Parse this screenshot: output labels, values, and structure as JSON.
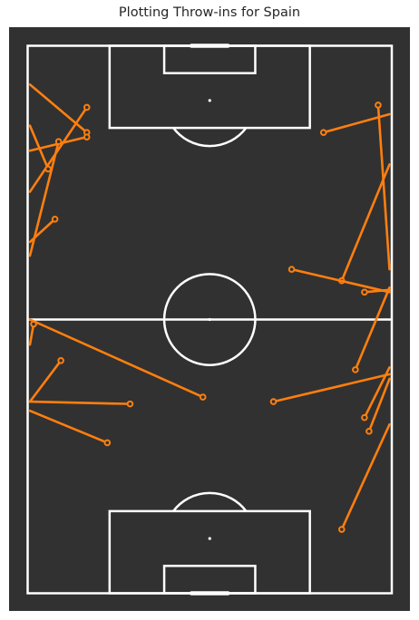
{
  "chart_data": {
    "type": "scatter",
    "title": "Plotting Throw-ins for Spain",
    "xlim": [
      0,
      80
    ],
    "ylim": [
      0,
      120
    ],
    "colors": {
      "pitch": "#313131",
      "line": "#ffffff",
      "pass": "#ff7f0e"
    },
    "passes": [
      {
        "x": 0.5,
        "y": 111.5,
        "end_x": 13,
        "end_y": 101
      },
      {
        "x": 0.5,
        "y": 88,
        "end_x": 13,
        "end_y": 106.5
      },
      {
        "x": 0.5,
        "y": 97,
        "end_x": 13,
        "end_y": 100
      },
      {
        "x": 0.5,
        "y": 77,
        "end_x": 6,
        "end_y": 82
      },
      {
        "x": 0.5,
        "y": 74,
        "end_x": 6.8,
        "end_y": 99
      },
      {
        "x": 0.5,
        "y": 102.5,
        "end_x": 4.5,
        "end_y": 93
      },
      {
        "x": 0.5,
        "y": 54.5,
        "end_x": 1.3,
        "end_y": 59
      },
      {
        "x": 0.5,
        "y": 42,
        "end_x": 7.3,
        "end_y": 51
      },
      {
        "x": 0.5,
        "y": 42,
        "end_x": 22.5,
        "end_y": 41.5
      },
      {
        "x": 0.5,
        "y": 40,
        "end_x": 17.5,
        "end_y": 33
      },
      {
        "x": 0.5,
        "y": 60,
        "end_x": 38.5,
        "end_y": 43
      },
      {
        "x": 79.5,
        "y": 105,
        "end_x": 65,
        "end_y": 101
      },
      {
        "x": 79.5,
        "y": 94,
        "end_x": 69,
        "end_y": 68.5
      },
      {
        "x": 79.5,
        "y": 66,
        "end_x": 58,
        "end_y": 71
      },
      {
        "x": 79.5,
        "y": 66.5,
        "end_x": 74,
        "end_y": 66
      },
      {
        "x": 79.5,
        "y": 71,
        "end_x": 77,
        "end_y": 107
      },
      {
        "x": 79.5,
        "y": 67,
        "end_x": 72,
        "end_y": 49
      },
      {
        "x": 79.5,
        "y": 48,
        "end_x": 54,
        "end_y": 42
      },
      {
        "x": 79.5,
        "y": 49.5,
        "end_x": 74,
        "end_y": 38.5
      },
      {
        "x": 79.5,
        "y": 47,
        "end_x": 75,
        "end_y": 35.5
      },
      {
        "x": 79.5,
        "y": 37,
        "end_x": 69,
        "end_y": 14
      }
    ]
  }
}
